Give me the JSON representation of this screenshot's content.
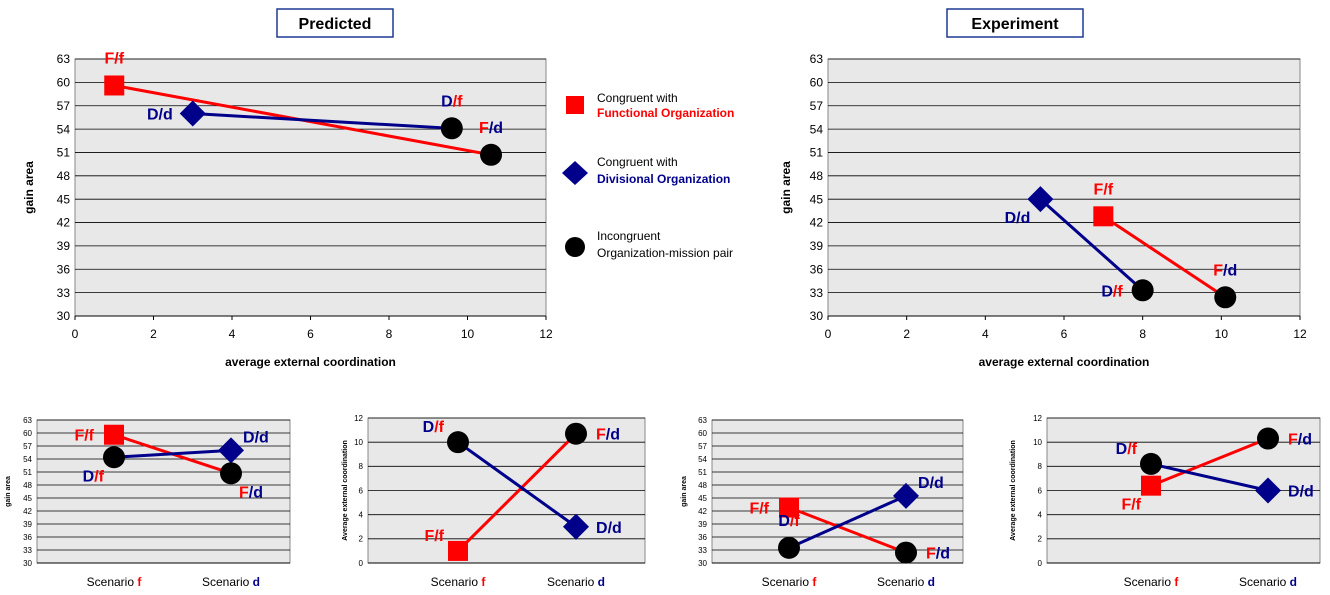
{
  "titles": {
    "predicted": "Predicted",
    "experiment": "Experiment"
  },
  "colors": {
    "functional": "#ff0000",
    "divisional": "#00008b",
    "incongruent": "#000000",
    "plot_bg": "#e8e8e8",
    "grid": "#000000"
  },
  "legend": [
    {
      "marker": "square",
      "line1": "Congruent with",
      "line2": "Functional Organization",
      "line2_color": "#ff0000"
    },
    {
      "marker": "diamond",
      "line1": "Congruent with",
      "line2": "Divisional Organization",
      "line2_color": "#00008b"
    },
    {
      "marker": "circle",
      "line1": "Incongruent",
      "line2": "Organization-mission pair",
      "line2_color": "#000000"
    }
  ],
  "chart_data": [
    {
      "id": "predicted-main",
      "type": "scatter",
      "xlabel": "average external coordination",
      "ylabel": "gain area",
      "xlim": [
        0,
        12
      ],
      "ylim": [
        30,
        63
      ],
      "xticks": [
        0,
        2,
        4,
        6,
        8,
        10,
        12
      ],
      "yticks": [
        30,
        33,
        36,
        39,
        42,
        45,
        48,
        51,
        54,
        57,
        60,
        63
      ],
      "lines": [
        {
          "color": "functional",
          "points": [
            [
              1,
              59.6
            ],
            [
              10.6,
              50.7
            ]
          ]
        },
        {
          "color": "divisional",
          "points": [
            [
              3,
              56
            ],
            [
              9.6,
              54.1
            ]
          ]
        }
      ],
      "points": [
        {
          "x": 1,
          "y": 59.6,
          "marker": "square",
          "label": [
            "F",
            "/f"
          ],
          "label_colors": [
            "functional",
            "functional"
          ],
          "label_pos": "above"
        },
        {
          "x": 3,
          "y": 56,
          "marker": "diamond",
          "label": [
            "D",
            "/d"
          ],
          "label_colors": [
            "divisional",
            "divisional"
          ],
          "label_pos": "left"
        },
        {
          "x": 9.6,
          "y": 54.1,
          "marker": "circle",
          "label": [
            "D",
            "/f"
          ],
          "label_colors": [
            "divisional",
            "functional"
          ],
          "label_pos": "above"
        },
        {
          "x": 10.6,
          "y": 50.7,
          "marker": "circle",
          "label": [
            "F",
            "/d"
          ],
          "label_colors": [
            "functional",
            "divisional"
          ],
          "label_pos": "above"
        }
      ]
    },
    {
      "id": "experiment-main",
      "type": "scatter",
      "xlabel": "average external coordination",
      "ylabel": "gain area",
      "xlim": [
        0,
        12
      ],
      "ylim": [
        30,
        63
      ],
      "xticks": [
        0,
        2,
        4,
        6,
        8,
        10,
        12
      ],
      "yticks": [
        30,
        33,
        36,
        39,
        42,
        45,
        48,
        51,
        54,
        57,
        60,
        63
      ],
      "lines": [
        {
          "color": "functional",
          "points": [
            [
              7,
              42.8
            ],
            [
              10.1,
              32.4
            ]
          ]
        },
        {
          "color": "divisional",
          "points": [
            [
              5.4,
              45
            ],
            [
              8,
              33.3
            ]
          ]
        }
      ],
      "points": [
        {
          "x": 7,
          "y": 42.8,
          "marker": "square",
          "label": [
            "F",
            "/f"
          ],
          "label_colors": [
            "functional",
            "functional"
          ],
          "label_pos": "above"
        },
        {
          "x": 5.4,
          "y": 45,
          "marker": "diamond",
          "label": [
            "D",
            "/d"
          ],
          "label_colors": [
            "divisional",
            "divisional"
          ],
          "label_pos": "below-left"
        },
        {
          "x": 8,
          "y": 33.3,
          "marker": "circle",
          "label": [
            "D",
            "/f"
          ],
          "label_colors": [
            "divisional",
            "functional"
          ],
          "label_pos": "left"
        },
        {
          "x": 10.1,
          "y": 32.4,
          "marker": "circle",
          "label": [
            "F",
            "/d"
          ],
          "label_colors": [
            "functional",
            "divisional"
          ],
          "label_pos": "above"
        }
      ]
    },
    {
      "id": "predicted-gain",
      "type": "line",
      "ylabel": "gain area",
      "categories": [
        [
          "Scenario ",
          "f"
        ],
        [
          "Scenario ",
          "d"
        ]
      ],
      "ylim": [
        30,
        63
      ],
      "yticks": [
        30,
        33,
        36,
        39,
        42,
        45,
        48,
        51,
        54,
        57,
        60,
        63
      ],
      "lines": [
        {
          "color": "functional",
          "points": [
            [
              0,
              59.6
            ],
            [
              1,
              50.7
            ]
          ]
        },
        {
          "color": "divisional",
          "points": [
            [
              0,
              54.4
            ],
            [
              1,
              56
            ]
          ]
        }
      ],
      "points": [
        {
          "x": 0,
          "y": 59.6,
          "marker": "square",
          "label": [
            "F",
            "/f"
          ],
          "label_colors": [
            "functional",
            "functional"
          ],
          "label_pos": "left"
        },
        {
          "x": 0,
          "y": 54.4,
          "marker": "circle",
          "label": [
            "D",
            "/f"
          ],
          "label_colors": [
            "divisional",
            "functional"
          ],
          "label_pos": "below-left"
        },
        {
          "x": 1,
          "y": 56,
          "marker": "diamond",
          "label": [
            "D",
            "/d"
          ],
          "label_colors": [
            "divisional",
            "divisional"
          ],
          "label_pos": "above-right"
        },
        {
          "x": 1,
          "y": 50.7,
          "marker": "circle",
          "label": [
            "F",
            "/d"
          ],
          "label_colors": [
            "functional",
            "divisional"
          ],
          "label_pos": "below-right"
        }
      ]
    },
    {
      "id": "predicted-coord",
      "type": "line",
      "ylabel": "Average external coordination",
      "categories": [
        [
          "Scenario ",
          "f"
        ],
        [
          "Scenario ",
          "d"
        ]
      ],
      "ylim": [
        0,
        12
      ],
      "yticks": [
        0,
        2,
        4,
        6,
        8,
        10,
        12
      ],
      "lines": [
        {
          "color": "functional",
          "points": [
            [
              0,
              1
            ],
            [
              1,
              10.7
            ]
          ]
        },
        {
          "color": "divisional",
          "points": [
            [
              0,
              10
            ],
            [
              1,
              3
            ]
          ]
        }
      ],
      "points": [
        {
          "x": 0,
          "y": 10,
          "marker": "circle",
          "label": [
            "D",
            "/f"
          ],
          "label_colors": [
            "divisional",
            "functional"
          ],
          "label_pos": "above-left"
        },
        {
          "x": 0,
          "y": 1,
          "marker": "square",
          "label": [
            "F",
            "/f"
          ],
          "label_colors": [
            "functional",
            "functional"
          ],
          "label_pos": "above-left"
        },
        {
          "x": 1,
          "y": 10.7,
          "marker": "circle",
          "label": [
            "F",
            "/d"
          ],
          "label_colors": [
            "functional",
            "divisional"
          ],
          "label_pos": "right"
        },
        {
          "x": 1,
          "y": 3,
          "marker": "diamond",
          "label": [
            "D",
            "/d"
          ],
          "label_colors": [
            "divisional",
            "divisional"
          ],
          "label_pos": "right"
        }
      ]
    },
    {
      "id": "experiment-gain",
      "type": "line",
      "ylabel": "gain area",
      "categories": [
        [
          "Scenario ",
          "f"
        ],
        [
          "Scenario ",
          "d"
        ]
      ],
      "ylim": [
        30,
        63
      ],
      "yticks": [
        30,
        33,
        36,
        39,
        42,
        45,
        48,
        51,
        54,
        57,
        60,
        63
      ],
      "lines": [
        {
          "color": "functional",
          "points": [
            [
              0,
              42.8
            ],
            [
              1,
              32.4
            ]
          ]
        },
        {
          "color": "divisional",
          "points": [
            [
              0,
              33.5
            ],
            [
              1,
              45.5
            ]
          ]
        }
      ],
      "points": [
        {
          "x": 0,
          "y": 42.8,
          "marker": "square",
          "label": [
            "F",
            "/f"
          ],
          "label_colors": [
            "functional",
            "functional"
          ],
          "label_pos": "left"
        },
        {
          "x": 0,
          "y": 33.5,
          "marker": "circle",
          "label": [
            "D",
            "/f"
          ],
          "label_colors": [
            "divisional",
            "functional"
          ],
          "label_pos": "above"
        },
        {
          "x": 1,
          "y": 45.5,
          "marker": "diamond",
          "label": [
            "D",
            "/d"
          ],
          "label_colors": [
            "divisional",
            "divisional"
          ],
          "label_pos": "above-right"
        },
        {
          "x": 1,
          "y": 32.4,
          "marker": "circle",
          "label": [
            "F",
            "/d"
          ],
          "label_colors": [
            "functional",
            "divisional"
          ],
          "label_pos": "right"
        }
      ]
    },
    {
      "id": "experiment-coord",
      "type": "line",
      "ylabel": "Average external coordination",
      "categories": [
        [
          "Scenario ",
          "f"
        ],
        [
          "Scenario ",
          "d"
        ]
      ],
      "ylim": [
        0,
        12
      ],
      "yticks": [
        0,
        2,
        4,
        6,
        8,
        10,
        12
      ],
      "lines": [
        {
          "color": "functional",
          "points": [
            [
              0,
              6.4
            ],
            [
              1,
              10.3
            ]
          ]
        },
        {
          "color": "divisional",
          "points": [
            [
              0,
              8.2
            ],
            [
              1,
              6
            ]
          ]
        }
      ],
      "points": [
        {
          "x": 0,
          "y": 8.2,
          "marker": "circle",
          "label": [
            "D",
            "/f"
          ],
          "label_colors": [
            "divisional",
            "functional"
          ],
          "label_pos": "above-left"
        },
        {
          "x": 0,
          "y": 6.4,
          "marker": "square",
          "label": [
            "F",
            "/f"
          ],
          "label_colors": [
            "functional",
            "functional"
          ],
          "label_pos": "below-left"
        },
        {
          "x": 1,
          "y": 10.3,
          "marker": "circle",
          "label": [
            "F",
            "/d"
          ],
          "label_colors": [
            "functional",
            "divisional"
          ],
          "label_pos": "right"
        },
        {
          "x": 1,
          "y": 6,
          "marker": "diamond",
          "label": [
            "D",
            "/d"
          ],
          "label_colors": [
            "divisional",
            "divisional"
          ],
          "label_pos": "right"
        }
      ]
    }
  ]
}
